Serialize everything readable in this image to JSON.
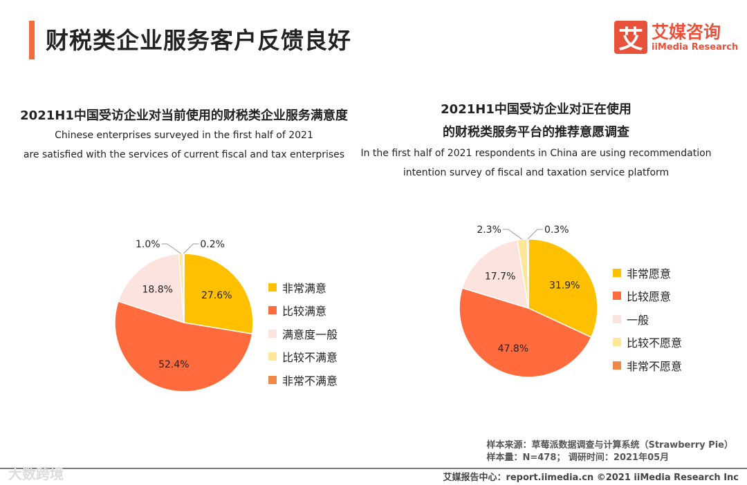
{
  "header": {
    "title": "财税类企业服务客户反馈良好",
    "logo_mark": "艾",
    "logo_cn": "艾媒咨询",
    "logo_en": "iiMedia Research"
  },
  "chart_data": [
    {
      "type": "pie",
      "title": "2021H1中国受访企业对当前使用的财税类企业服务满意度",
      "subtitle": [
        "Chinese enterprises surveyed in the first half of 2021",
        "are satisfied with the services of current fiscal and tax enterprises"
      ],
      "categories": [
        "非常满意",
        "比较满意",
        "满意度一般",
        "比较不满意",
        "非常不满意"
      ],
      "values": [
        27.6,
        52.4,
        18.8,
        1.0,
        0.2
      ],
      "labels": [
        "27.6%",
        "52.4%",
        "18.8%",
        "1.0%",
        "0.2%"
      ],
      "legend": "right"
    },
    {
      "type": "pie",
      "title": "2021H1中国受访企业对正在使用",
      "title2": "的财税类服务平台的推荐意愿调查",
      "subtitle": [
        "In the first half of 2021 respondents in China are using recommendation",
        "intention survey of fiscal and taxation service platform"
      ],
      "categories": [
        "非常愿意",
        "比较愿意",
        "一般",
        "比较不愿意",
        "非常不愿意"
      ],
      "values": [
        31.9,
        47.8,
        17.7,
        2.3,
        0.3
      ],
      "labels": [
        "31.9%",
        "47.8%",
        "17.7%",
        "2.3%",
        "0.3%"
      ],
      "legend": "right"
    }
  ],
  "colors": [
    "#FFC000",
    "#FF6B3D",
    "#FCE3DE",
    "#FFE699",
    "#F0884A"
  ],
  "footer": {
    "source": "样本来源：草莓派数据调查与计算系统（Strawberry Pie）",
    "sample": "样本量：N=478； 调研时间：2021年05月",
    "credit": "艾媒报告中心：report.iimedia.cn  ©2021  iiMedia Research  Inc",
    "watermark": "大数跨境"
  }
}
